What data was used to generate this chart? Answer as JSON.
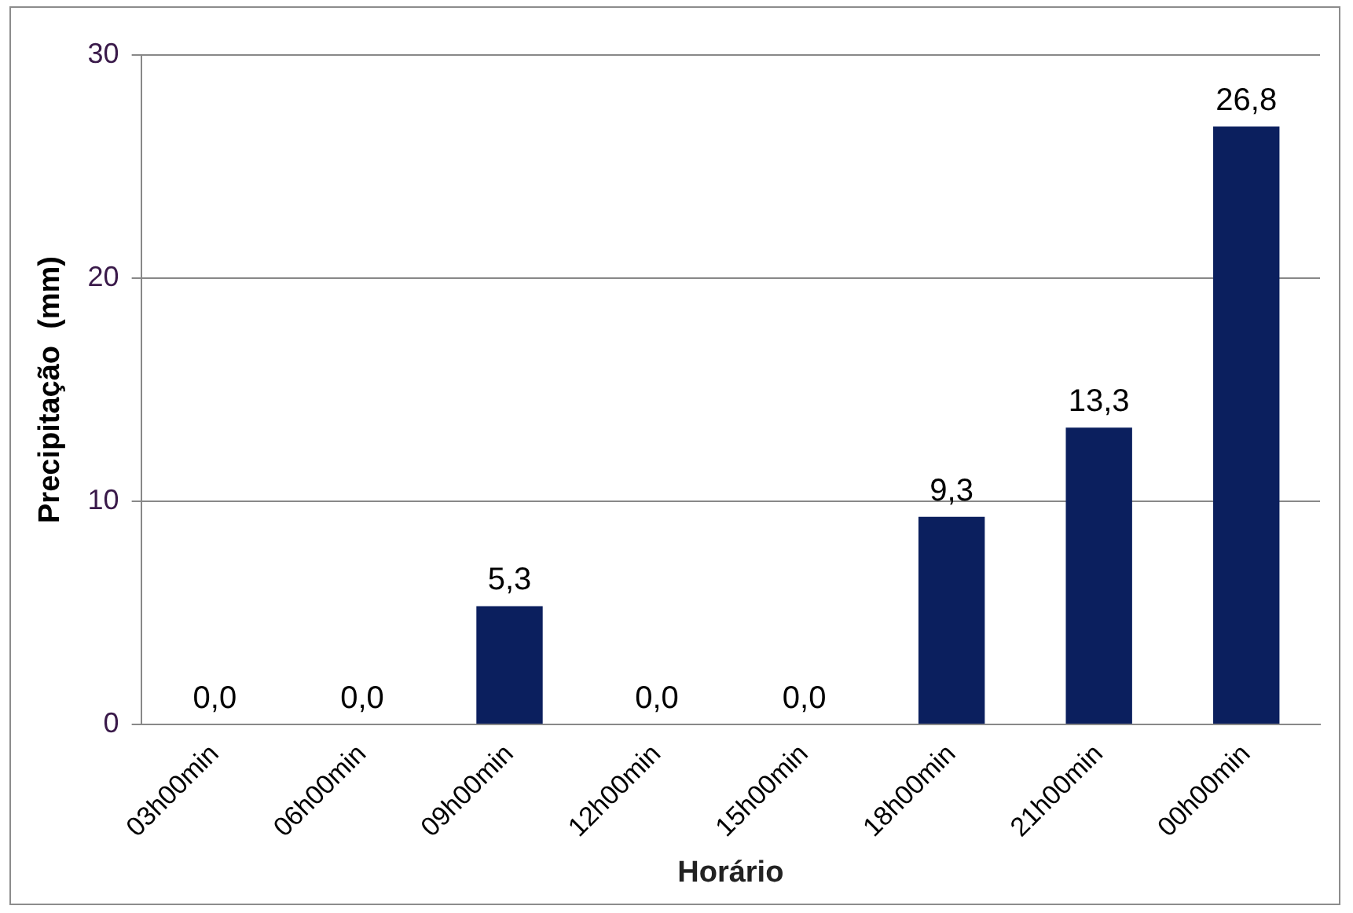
{
  "chart_data": {
    "type": "bar",
    "xlabel": "Horário",
    "ylabel": "Precipitação  (mm)",
    "categories": [
      "03h00min",
      "06h00min",
      "09h00min",
      "12h00min",
      "15h00min",
      "18h00min",
      "21h00min",
      "00h00min"
    ],
    "values": [
      0,
      0,
      5.3,
      0,
      0,
      9.3,
      13.3,
      26.8
    ],
    "value_labels": [
      "0,0",
      "0,0",
      "5,3",
      "0,0",
      "0,0",
      "9,3",
      "13,3",
      "26,8"
    ],
    "color": "#0b1f5e",
    "ylim": [
      0,
      30
    ],
    "yticks": [
      0,
      10,
      20,
      30
    ],
    "grid": "y",
    "legend": false
  }
}
